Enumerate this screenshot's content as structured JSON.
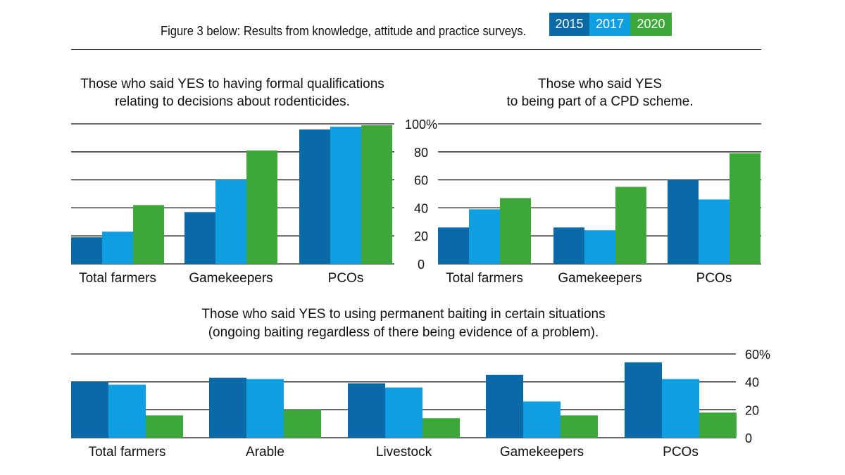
{
  "figure_title": "Figure 3 below:  Results from knowledge, attitude and practice surveys.",
  "legend": [
    {
      "label": "2015",
      "color": "#0a6aa8"
    },
    {
      "label": "2017",
      "color": "#0e9fe2"
    },
    {
      "label": "2020",
      "color": "#3ea73a"
    }
  ],
  "chart_data": [
    {
      "type": "bar",
      "title": [
        "Those who said YES to having formal qualifications",
        "relating to decisions about rodenticides."
      ],
      "categories": [
        "Total farmers",
        "Gamekeepers",
        "PCOs"
      ],
      "series": [
        {
          "name": "2015",
          "values": [
            19,
            37,
            96
          ]
        },
        {
          "name": "2017",
          "values": [
            23,
            60,
            98
          ]
        },
        {
          "name": "2020",
          "values": [
            42,
            81,
            99
          ]
        }
      ],
      "ylim": [
        0,
        100
      ],
      "yticks": [
        0,
        20,
        40,
        60,
        80,
        100
      ],
      "ytick_labels": [
        "0",
        "20",
        "40",
        "60",
        "80",
        "100%"
      ],
      "shares_axis_with_next": true
    },
    {
      "type": "bar",
      "title": [
        "Those who said YES",
        "to being part of a CPD scheme."
      ],
      "categories": [
        "Total farmers",
        "Gamekeepers",
        "PCOs"
      ],
      "series": [
        {
          "name": "2015",
          "values": [
            26,
            26,
            60
          ]
        },
        {
          "name": "2017",
          "values": [
            39,
            24,
            46
          ]
        },
        {
          "name": "2020",
          "values": [
            47,
            55,
            79
          ]
        }
      ],
      "ylim": [
        0,
        100
      ],
      "yticks": [
        0,
        20,
        40,
        60,
        80,
        100
      ],
      "ytick_labels": [
        "0",
        "20",
        "40",
        "60",
        "80",
        "100%"
      ]
    },
    {
      "type": "bar",
      "title": [
        "Those who said YES to using permanent baiting in certain situations",
        "(ongoing baiting regardless of there being evidence of a problem)."
      ],
      "categories": [
        "Total farmers",
        "Arable",
        "Livestock",
        "Gamekeepers",
        "PCOs"
      ],
      "series": [
        {
          "name": "2015",
          "values": [
            40,
            43,
            39,
            45,
            54
          ]
        },
        {
          "name": "2017",
          "values": [
            38,
            42,
            36,
            26,
            42
          ]
        },
        {
          "name": "2020",
          "values": [
            16,
            20,
            14,
            16,
            18
          ]
        }
      ],
      "ylim": [
        0,
        60
      ],
      "yticks": [
        0,
        20,
        40,
        60
      ],
      "ytick_labels": [
        "0",
        "20",
        "40",
        "60%"
      ]
    }
  ]
}
